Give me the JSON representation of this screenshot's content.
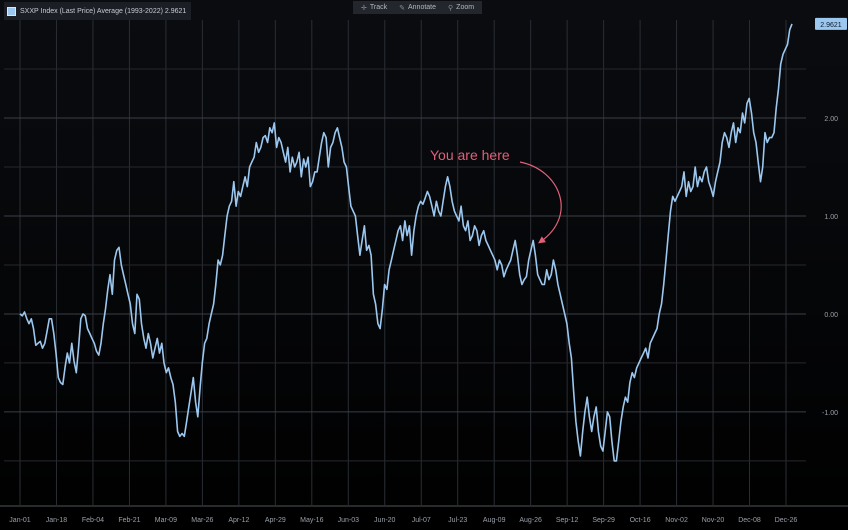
{
  "legend": {
    "label": "SXXP Index (Last Price) Average (1993-2022)  2.9621",
    "swatch_color": "#9cc8f0"
  },
  "toolbar": {
    "track": "Track",
    "annotate": "Annotate",
    "zoom": "Zoom"
  },
  "chart_data": {
    "type": "line",
    "title": "",
    "xlabel": "",
    "ylabel": "",
    "ylim": [
      -1.95,
      3.0
    ],
    "grid": true,
    "line_color": "#9cc8f0",
    "last_value_label": "2.9621",
    "annotation": {
      "text": "You are here",
      "color": "#e0607a",
      "target_x": "Aug-30",
      "target_y": 0.68
    },
    "x_tick_labels": [
      "Jan-01",
      "Jan-18",
      "Feb-04",
      "Feb-21",
      "Mar-09",
      "Mar-26",
      "Apr-12",
      "Apr-29",
      "May-16",
      "Jun-03",
      "Jun-20",
      "Jul-07",
      "Jul-23",
      "Aug-09",
      "Aug-26",
      "Sep-12",
      "Sep-29",
      "Oct-16",
      "Nov-02",
      "Nov-20",
      "Dec-08",
      "Dec-26"
    ],
    "y_ticks": [
      -1.0,
      0.0,
      1.0,
      2.0
    ],
    "y_tick_labels": [
      "-1.00",
      "0.00",
      "1.00",
      "2.00"
    ],
    "series": [
      {
        "values": [
          0.0,
          -0.02,
          0.02,
          -0.05,
          -0.1,
          -0.05,
          -0.15,
          -0.32,
          -0.3,
          -0.28,
          -0.35,
          -0.3,
          -0.18,
          -0.05,
          -0.05,
          -0.2,
          -0.4,
          -0.65,
          -0.7,
          -0.72,
          -0.55,
          -0.4,
          -0.5,
          -0.3,
          -0.48,
          -0.6,
          -0.35,
          -0.05,
          0.0,
          -0.02,
          -0.15,
          -0.2,
          -0.25,
          -0.3,
          -0.38,
          -0.42,
          -0.3,
          -0.1,
          0.05,
          0.25,
          0.4,
          0.2,
          0.55,
          0.65,
          0.68,
          0.5,
          0.4,
          0.3,
          0.2,
          0.1,
          -0.1,
          -0.2,
          0.2,
          0.15,
          -0.1,
          -0.25,
          -0.35,
          -0.2,
          -0.3,
          -0.45,
          -0.35,
          -0.25,
          -0.4,
          -0.3,
          -0.5,
          -0.6,
          -0.55,
          -0.65,
          -0.72,
          -0.9,
          -1.2,
          -1.25,
          -1.22,
          -1.25,
          -1.1,
          -0.95,
          -0.8,
          -0.65,
          -0.9,
          -1.05,
          -0.75,
          -0.5,
          -0.3,
          -0.25,
          -0.1,
          0.0,
          0.1,
          0.3,
          0.55,
          0.5,
          0.6,
          0.8,
          1.0,
          1.1,
          1.15,
          1.35,
          1.1,
          1.25,
          1.2,
          1.3,
          1.4,
          1.3,
          1.5,
          1.55,
          1.6,
          1.75,
          1.65,
          1.7,
          1.8,
          1.82,
          1.75,
          1.9,
          1.85,
          1.95,
          1.7,
          1.8,
          1.75,
          1.65,
          1.55,
          1.7,
          1.45,
          1.6,
          1.5,
          1.55,
          1.65,
          1.4,
          1.58,
          1.5,
          1.6,
          1.3,
          1.35,
          1.45,
          1.45,
          1.6,
          1.75,
          1.85,
          1.8,
          1.5,
          1.7,
          1.75,
          1.85,
          1.9,
          1.8,
          1.7,
          1.55,
          1.5,
          1.3,
          1.1,
          1.05,
          1.0,
          0.8,
          0.6,
          0.75,
          0.9,
          0.65,
          0.7,
          0.6,
          0.2,
          0.1,
          -0.1,
          -0.15,
          0.05,
          0.3,
          0.25,
          0.45,
          0.55,
          0.65,
          0.75,
          0.85,
          0.9,
          0.75,
          0.95,
          0.8,
          0.9,
          0.6,
          0.85,
          1.0,
          1.1,
          1.15,
          1.12,
          1.18,
          1.25,
          1.2,
          1.1,
          1.0,
          1.15,
          1.05,
          1.0,
          1.15,
          1.3,
          1.4,
          1.3,
          1.15,
          1.05,
          1.0,
          0.95,
          1.1,
          0.9,
          0.85,
          0.95,
          0.75,
          0.8,
          0.9,
          0.85,
          0.7,
          0.8,
          0.85,
          0.75,
          0.7,
          0.65,
          0.6,
          0.55,
          0.45,
          0.55,
          0.5,
          0.38,
          0.45,
          0.5,
          0.55,
          0.65,
          0.75,
          0.6,
          0.4,
          0.3,
          0.35,
          0.38,
          0.55,
          0.65,
          0.75,
          0.6,
          0.4,
          0.35,
          0.3,
          0.3,
          0.45,
          0.35,
          0.4,
          0.55,
          0.45,
          0.3,
          0.2,
          0.1,
          0.0,
          -0.1,
          -0.3,
          -0.45,
          -0.8,
          -1.1,
          -1.3,
          -1.45,
          -1.2,
          -1.0,
          -0.85,
          -1.05,
          -1.2,
          -1.05,
          -0.95,
          -1.2,
          -1.35,
          -1.4,
          -1.2,
          -1.0,
          -1.05,
          -1.3,
          -1.5,
          -1.5,
          -1.3,
          -1.1,
          -0.95,
          -0.85,
          -0.9,
          -0.7,
          -0.6,
          -0.65,
          -0.55,
          -0.5,
          -0.45,
          -0.4,
          -0.35,
          -0.45,
          -0.3,
          -0.25,
          -0.2,
          -0.15,
          0.0,
          0.1,
          0.3,
          0.55,
          0.8,
          1.05,
          1.2,
          1.15,
          1.2,
          1.25,
          1.3,
          1.45,
          1.2,
          1.35,
          1.25,
          1.3,
          1.5,
          1.3,
          1.4,
          1.35,
          1.45,
          1.5,
          1.35,
          1.28,
          1.2,
          1.35,
          1.45,
          1.55,
          1.75,
          1.85,
          1.8,
          1.7,
          1.85,
          1.95,
          1.75,
          1.9,
          1.85,
          2.05,
          1.95,
          2.15,
          2.2,
          2.05,
          1.85,
          1.75,
          1.55,
          1.35,
          1.5,
          1.85,
          1.75,
          1.8,
          1.8,
          1.85,
          2.1,
          2.3,
          2.55,
          2.65,
          2.7,
          2.75,
          2.9,
          2.96
        ]
      }
    ]
  }
}
